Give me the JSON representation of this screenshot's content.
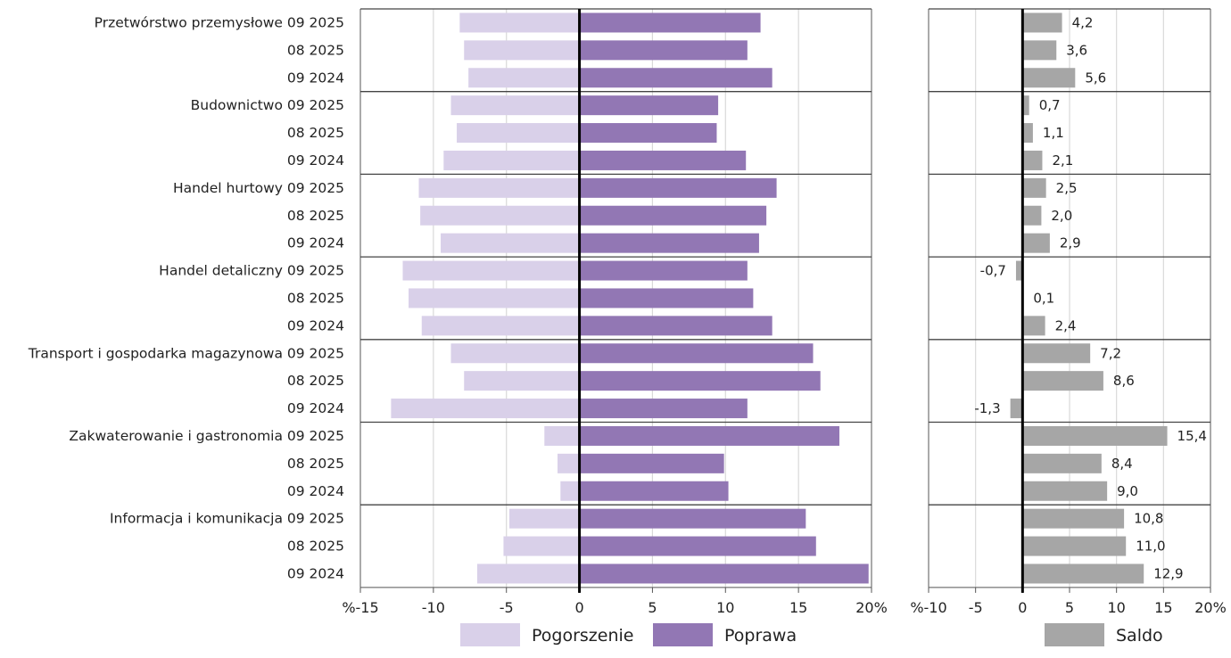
{
  "chart_data": [
    {
      "type": "bar",
      "orientation": "horizontal",
      "stacking": "diverging",
      "groups": [
        {
          "sector": "Przetwórstwo przemysłowe",
          "periods": [
            "09 2025",
            "08 2025",
            "09 2024"
          ]
        },
        {
          "sector": "Budownictwo",
          "periods": [
            "09 2025",
            "08 2025",
            "09 2024"
          ]
        },
        {
          "sector": "Handel hurtowy",
          "periods": [
            "09 2025",
            "08 2025",
            "09 2024"
          ]
        },
        {
          "sector": "Handel detaliczny",
          "periods": [
            "09 2025",
            "08 2025",
            "09 2024"
          ]
        },
        {
          "sector": "Transport i gospodarka magazynowa",
          "periods": [
            "09 2025",
            "08 2025",
            "09 2024"
          ]
        },
        {
          "sector": "Zakwaterowanie i gastronomia",
          "periods": [
            "09 2025",
            "08 2025",
            "09 2024"
          ]
        },
        {
          "sector": "Informacja i komunikacja",
          "periods": [
            "09 2025",
            "08 2025",
            "09 2024"
          ]
        }
      ],
      "series": [
        {
          "name": "Pogorszenie",
          "color": "#d9d0e9",
          "values": [
            -8.2,
            -7.9,
            -7.6,
            -8.8,
            -8.4,
            -9.3,
            -11.0,
            -10.9,
            -9.5,
            -12.1,
            -11.7,
            -10.8,
            -8.8,
            -7.9,
            -12.9,
            -2.4,
            -1.5,
            -1.3,
            -4.8,
            -5.2,
            -7.0
          ]
        },
        {
          "name": "Poprawa",
          "color": "#9277b4",
          "values": [
            12.4,
            11.5,
            13.2,
            9.5,
            9.4,
            11.4,
            13.5,
            12.8,
            12.3,
            11.5,
            11.9,
            13.2,
            16.0,
            16.5,
            11.5,
            17.8,
            9.9,
            10.2,
            15.5,
            16.2,
            19.8
          ]
        }
      ],
      "xlim": [
        -15,
        20
      ],
      "xticks": [
        "%-15",
        "-10",
        "-5",
        "0",
        "5",
        "10",
        "15",
        "20%"
      ],
      "grid": true,
      "legend": "bottom"
    },
    {
      "type": "bar",
      "orientation": "horizontal",
      "series": [
        {
          "name": "Saldo",
          "color": "#a6a6a6",
          "values": [
            4.2,
            3.6,
            5.6,
            0.7,
            1.1,
            2.1,
            2.5,
            2.0,
            2.9,
            -0.7,
            0.1,
            2.4,
            7.2,
            8.6,
            -1.3,
            15.4,
            8.4,
            9.0,
            10.8,
            11.0,
            12.9
          ],
          "labels": [
            "4,2",
            "3,6",
            "5,6",
            "0,7",
            "1,1",
            "2,1",
            "2,5",
            "2,0",
            "2,9",
            "-0,7",
            "0,1",
            "2,4",
            "7,2",
            "8,6",
            "-1,3",
            "15,4",
            "8,4",
            "9,0",
            "10,8",
            "11,0",
            "12,9"
          ]
        }
      ],
      "xlim": [
        -10,
        20
      ],
      "xticks": [
        "%-10",
        "-5",
        "0",
        "5",
        "10",
        "15",
        "20%"
      ],
      "grid": true,
      "legend": "bottom"
    }
  ]
}
